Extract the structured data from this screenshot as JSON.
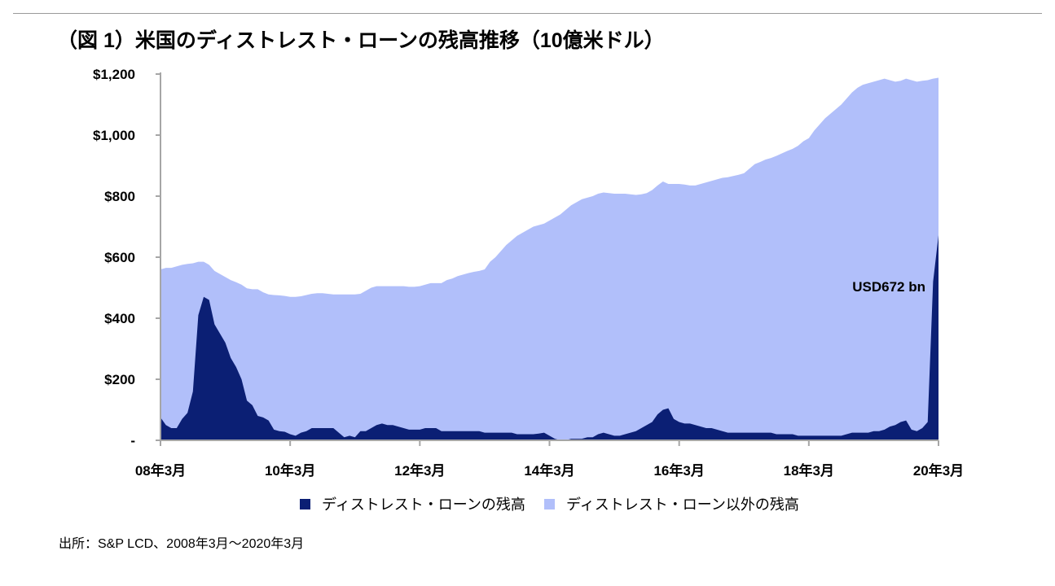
{
  "title": "（図 1）米国のディストレスト・ローンの残高推移（10億米ドル）",
  "source": "出所：S&P LCD、2008年3月～2020年3月",
  "colors": {
    "distressed": "#0b1f74",
    "non_distressed": "#b1bffa",
    "axis": "#a6a6a6"
  },
  "chart_data": {
    "type": "area",
    "stacked": true,
    "x_start": "2008-03",
    "x_end": "2020-03",
    "x_ticks": [
      "08年3月",
      "10年3月",
      "12年3月",
      "14年3月",
      "16年3月",
      "18年3月",
      "20年3月"
    ],
    "y_ticks": [
      "-",
      "$200",
      "$400",
      "$600",
      "$800",
      "$1,000",
      "$1,200"
    ],
    "ylim": [
      0,
      1200
    ],
    "legend_position": "bottom",
    "annotation": "USD672 bn",
    "series": [
      {
        "name": "ディストレスト・ローンの残高",
        "color": "#0b1f74",
        "points": [
          [
            "2008-03",
            75
          ],
          [
            "2008-04",
            50
          ],
          [
            "2008-05",
            40
          ],
          [
            "2008-06",
            40
          ],
          [
            "2008-07",
            70
          ],
          [
            "2008-08",
            90
          ],
          [
            "2008-09",
            160
          ],
          [
            "2008-10",
            410
          ],
          [
            "2008-11",
            470
          ],
          [
            "2008-12",
            460
          ],
          [
            "2009-01",
            380
          ],
          [
            "2009-02",
            350
          ],
          [
            "2009-03",
            320
          ],
          [
            "2009-04",
            270
          ],
          [
            "2009-05",
            240
          ],
          [
            "2009-06",
            200
          ],
          [
            "2009-07",
            130
          ],
          [
            "2009-08",
            115
          ],
          [
            "2009-09",
            80
          ],
          [
            "2009-10",
            75
          ],
          [
            "2009-11",
            65
          ],
          [
            "2009-12",
            35
          ],
          [
            "2010-01",
            30
          ],
          [
            "2010-02",
            28
          ],
          [
            "2010-03",
            20
          ],
          [
            "2010-04",
            15
          ],
          [
            "2010-05",
            25
          ],
          [
            "2010-06",
            30
          ],
          [
            "2010-07",
            40
          ],
          [
            "2010-08",
            40
          ],
          [
            "2010-09",
            40
          ],
          [
            "2010-10",
            40
          ],
          [
            "2010-11",
            40
          ],
          [
            "2010-12",
            25
          ],
          [
            "2011-01",
            10
          ],
          [
            "2011-02",
            15
          ],
          [
            "2011-03",
            10
          ],
          [
            "2011-04",
            30
          ],
          [
            "2011-05",
            30
          ],
          [
            "2011-06",
            40
          ],
          [
            "2011-07",
            50
          ],
          [
            "2011-08",
            55
          ],
          [
            "2011-09",
            50
          ],
          [
            "2011-10",
            50
          ],
          [
            "2011-11",
            45
          ],
          [
            "2011-12",
            40
          ],
          [
            "2012-01",
            35
          ],
          [
            "2012-02",
            35
          ],
          [
            "2012-03",
            35
          ],
          [
            "2012-04",
            40
          ],
          [
            "2012-05",
            40
          ],
          [
            "2012-06",
            40
          ],
          [
            "2012-07",
            30
          ],
          [
            "2012-08",
            30
          ],
          [
            "2012-09",
            30
          ],
          [
            "2012-10",
            30
          ],
          [
            "2012-11",
            30
          ],
          [
            "2012-12",
            30
          ],
          [
            "2013-01",
            30
          ],
          [
            "2013-02",
            30
          ],
          [
            "2013-03",
            25
          ],
          [
            "2013-04",
            25
          ],
          [
            "2013-05",
            25
          ],
          [
            "2013-06",
            25
          ],
          [
            "2013-07",
            25
          ],
          [
            "2013-08",
            25
          ],
          [
            "2013-09",
            20
          ],
          [
            "2013-10",
            20
          ],
          [
            "2013-11",
            20
          ],
          [
            "2013-12",
            20
          ],
          [
            "2014-01",
            22
          ],
          [
            "2014-02",
            25
          ],
          [
            "2014-03",
            15
          ],
          [
            "2014-04",
            5
          ],
          [
            "2014-05",
            0
          ],
          [
            "2014-06",
            0
          ],
          [
            "2014-07",
            5
          ],
          [
            "2014-08",
            5
          ],
          [
            "2014-09",
            5
          ],
          [
            "2014-10",
            10
          ],
          [
            "2014-11",
            10
          ],
          [
            "2014-12",
            20
          ],
          [
            "2015-01",
            25
          ],
          [
            "2015-02",
            20
          ],
          [
            "2015-03",
            15
          ],
          [
            "2015-04",
            15
          ],
          [
            "2015-05",
            20
          ],
          [
            "2015-06",
            25
          ],
          [
            "2015-07",
            30
          ],
          [
            "2015-08",
            40
          ],
          [
            "2015-09",
            50
          ],
          [
            "2015-10",
            60
          ],
          [
            "2015-11",
            85
          ],
          [
            "2015-12",
            100
          ],
          [
            "2016-01",
            105
          ],
          [
            "2016-02",
            70
          ],
          [
            "2016-03",
            60
          ],
          [
            "2016-04",
            55
          ],
          [
            "2016-05",
            55
          ],
          [
            "2016-06",
            50
          ],
          [
            "2016-07",
            45
          ],
          [
            "2016-08",
            40
          ],
          [
            "2016-09",
            40
          ],
          [
            "2016-10",
            35
          ],
          [
            "2016-11",
            30
          ],
          [
            "2016-12",
            25
          ],
          [
            "2017-01",
            25
          ],
          [
            "2017-02",
            25
          ],
          [
            "2017-03",
            25
          ],
          [
            "2017-04",
            25
          ],
          [
            "2017-05",
            25
          ],
          [
            "2017-06",
            25
          ],
          [
            "2017-07",
            25
          ],
          [
            "2017-08",
            25
          ],
          [
            "2017-09",
            20
          ],
          [
            "2017-10",
            20
          ],
          [
            "2017-11",
            20
          ],
          [
            "2017-12",
            20
          ],
          [
            "2018-01",
            15
          ],
          [
            "2018-02",
            15
          ],
          [
            "2018-03",
            15
          ],
          [
            "2018-04",
            15
          ],
          [
            "2018-05",
            15
          ],
          [
            "2018-06",
            15
          ],
          [
            "2018-07",
            15
          ],
          [
            "2018-08",
            15
          ],
          [
            "2018-09",
            15
          ],
          [
            "2018-10",
            20
          ],
          [
            "2018-11",
            25
          ],
          [
            "2018-12",
            25
          ],
          [
            "2019-01",
            25
          ],
          [
            "2019-02",
            25
          ],
          [
            "2019-03",
            30
          ],
          [
            "2019-04",
            30
          ],
          [
            "2019-05",
            35
          ],
          [
            "2019-06",
            45
          ],
          [
            "2019-07",
            50
          ],
          [
            "2019-08",
            60
          ],
          [
            "2019-09",
            65
          ],
          [
            "2019-10",
            35
          ],
          [
            "2019-11",
            30
          ],
          [
            "2019-12",
            40
          ],
          [
            "2020-01",
            60
          ],
          [
            "2020-02",
            520
          ],
          [
            "2020-03",
            672
          ]
        ]
      },
      {
        "name": "ディストレスト・ローン以外の残高",
        "color": "#b1bffa",
        "total_points": [
          [
            "2008-03",
            560
          ],
          [
            "2008-04",
            565
          ],
          [
            "2008-05",
            565
          ],
          [
            "2008-06",
            570
          ],
          [
            "2008-07",
            575
          ],
          [
            "2008-08",
            578
          ],
          [
            "2008-09",
            580
          ],
          [
            "2008-10",
            585
          ],
          [
            "2008-11",
            585
          ],
          [
            "2008-12",
            575
          ],
          [
            "2009-01",
            555
          ],
          [
            "2009-02",
            545
          ],
          [
            "2009-03",
            535
          ],
          [
            "2009-04",
            525
          ],
          [
            "2009-05",
            518
          ],
          [
            "2009-06",
            510
          ],
          [
            "2009-07",
            498
          ],
          [
            "2009-08",
            495
          ],
          [
            "2009-09",
            495
          ],
          [
            "2009-10",
            485
          ],
          [
            "2009-11",
            478
          ],
          [
            "2009-12",
            476
          ],
          [
            "2010-01",
            475
          ],
          [
            "2010-02",
            473
          ],
          [
            "2010-03",
            470
          ],
          [
            "2010-04",
            470
          ],
          [
            "2010-05",
            472
          ],
          [
            "2010-06",
            476
          ],
          [
            "2010-07",
            480
          ],
          [
            "2010-08",
            482
          ],
          [
            "2010-09",
            482
          ],
          [
            "2010-10",
            480
          ],
          [
            "2010-11",
            478
          ],
          [
            "2010-12",
            478
          ],
          [
            "2011-01",
            478
          ],
          [
            "2011-02",
            478
          ],
          [
            "2011-03",
            478
          ],
          [
            "2011-04",
            480
          ],
          [
            "2011-05",
            490
          ],
          [
            "2011-06",
            500
          ],
          [
            "2011-07",
            505
          ],
          [
            "2011-08",
            505
          ],
          [
            "2011-09",
            505
          ],
          [
            "2011-10",
            505
          ],
          [
            "2011-11",
            505
          ],
          [
            "2011-12",
            505
          ],
          [
            "2012-01",
            503
          ],
          [
            "2012-02",
            503
          ],
          [
            "2012-03",
            505
          ],
          [
            "2012-04",
            510
          ],
          [
            "2012-05",
            515
          ],
          [
            "2012-06",
            515
          ],
          [
            "2012-07",
            515
          ],
          [
            "2012-08",
            525
          ],
          [
            "2012-09",
            530
          ],
          [
            "2012-10",
            538
          ],
          [
            "2012-11",
            543
          ],
          [
            "2012-12",
            548
          ],
          [
            "2013-01",
            552
          ],
          [
            "2013-02",
            555
          ],
          [
            "2013-03",
            560
          ],
          [
            "2013-04",
            585
          ],
          [
            "2013-05",
            600
          ],
          [
            "2013-06",
            620
          ],
          [
            "2013-07",
            640
          ],
          [
            "2013-08",
            655
          ],
          [
            "2013-09",
            670
          ],
          [
            "2013-10",
            680
          ],
          [
            "2013-11",
            690
          ],
          [
            "2013-12",
            700
          ],
          [
            "2014-01",
            705
          ],
          [
            "2014-02",
            710
          ],
          [
            "2014-03",
            720
          ],
          [
            "2014-04",
            730
          ],
          [
            "2014-05",
            740
          ],
          [
            "2014-06",
            755
          ],
          [
            "2014-07",
            770
          ],
          [
            "2014-08",
            780
          ],
          [
            "2014-09",
            790
          ],
          [
            "2014-10",
            795
          ],
          [
            "2014-11",
            800
          ],
          [
            "2014-12",
            808
          ],
          [
            "2015-01",
            812
          ],
          [
            "2015-02",
            810
          ],
          [
            "2015-03",
            808
          ],
          [
            "2015-04",
            808
          ],
          [
            "2015-05",
            808
          ],
          [
            "2015-06",
            806
          ],
          [
            "2015-07",
            804
          ],
          [
            "2015-08",
            806
          ],
          [
            "2015-09",
            810
          ],
          [
            "2015-10",
            820
          ],
          [
            "2015-11",
            835
          ],
          [
            "2015-12",
            848
          ],
          [
            "2016-01",
            840
          ],
          [
            "2016-02",
            840
          ],
          [
            "2016-03",
            840
          ],
          [
            "2016-04",
            838
          ],
          [
            "2016-05",
            835
          ],
          [
            "2016-06",
            835
          ],
          [
            "2016-07",
            840
          ],
          [
            "2016-08",
            845
          ],
          [
            "2016-09",
            850
          ],
          [
            "2016-10",
            855
          ],
          [
            "2016-11",
            860
          ],
          [
            "2016-12",
            862
          ],
          [
            "2017-01",
            866
          ],
          [
            "2017-02",
            870
          ],
          [
            "2017-03",
            875
          ],
          [
            "2017-04",
            890
          ],
          [
            "2017-05",
            905
          ],
          [
            "2017-06",
            912
          ],
          [
            "2017-07",
            920
          ],
          [
            "2017-08",
            925
          ],
          [
            "2017-09",
            932
          ],
          [
            "2017-10",
            940
          ],
          [
            "2017-11",
            948
          ],
          [
            "2017-12",
            955
          ],
          [
            "2018-01",
            965
          ],
          [
            "2018-02",
            980
          ],
          [
            "2018-03",
            990
          ],
          [
            "2018-04",
            1015
          ],
          [
            "2018-05",
            1035
          ],
          [
            "2018-06",
            1055
          ],
          [
            "2018-07",
            1070
          ],
          [
            "2018-08",
            1085
          ],
          [
            "2018-09",
            1100
          ],
          [
            "2018-10",
            1120
          ],
          [
            "2018-11",
            1140
          ],
          [
            "2018-12",
            1155
          ],
          [
            "2019-01",
            1165
          ],
          [
            "2019-02",
            1170
          ],
          [
            "2019-03",
            1175
          ],
          [
            "2019-04",
            1180
          ],
          [
            "2019-05",
            1185
          ],
          [
            "2019-06",
            1180
          ],
          [
            "2019-07",
            1175
          ],
          [
            "2019-08",
            1178
          ],
          [
            "2019-09",
            1185
          ],
          [
            "2019-10",
            1180
          ],
          [
            "2019-11",
            1175
          ],
          [
            "2019-12",
            1178
          ],
          [
            "2020-01",
            1180
          ],
          [
            "2020-02",
            1185
          ],
          [
            "2020-03",
            1188
          ]
        ]
      }
    ]
  }
}
